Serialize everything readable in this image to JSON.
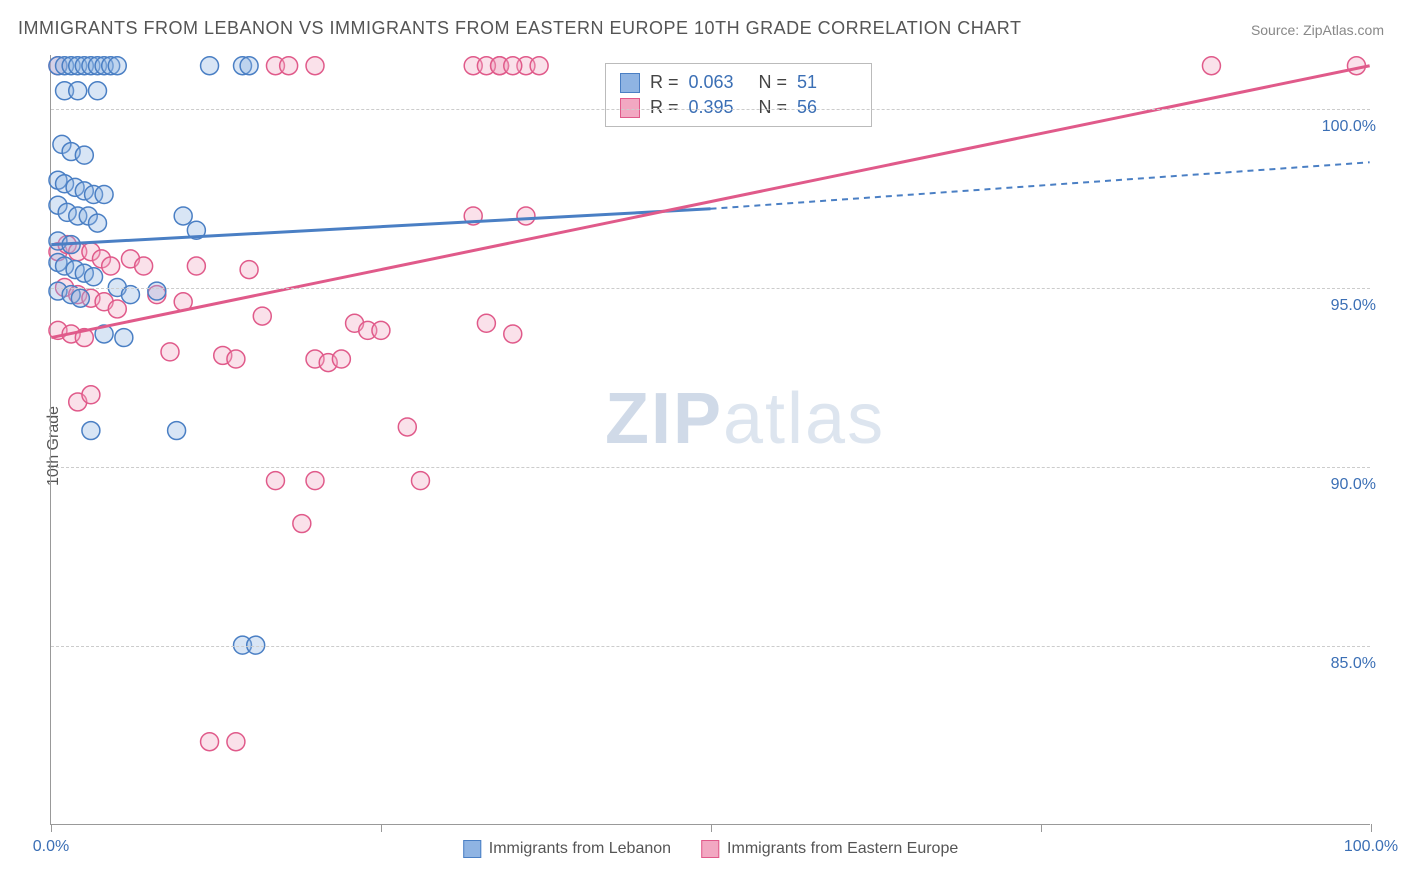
{
  "title": "IMMIGRANTS FROM LEBANON VS IMMIGRANTS FROM EASTERN EUROPE 10TH GRADE CORRELATION CHART",
  "source": "Source: ZipAtlas.com",
  "ylabel": "10th Grade",
  "watermark_a": "ZIP",
  "watermark_b": "atlas",
  "chart": {
    "type": "scatter",
    "xlim": [
      0,
      100
    ],
    "ylim": [
      80,
      101.5
    ],
    "xticks": [
      0,
      25,
      50,
      75,
      100
    ],
    "yticks": [
      85,
      90,
      95,
      100
    ],
    "xtick_labels": {
      "0": "0.0%",
      "100": "100.0%"
    },
    "ytick_labels": {
      "85": "85.0%",
      "90": "90.0%",
      "95": "95.0%",
      "100": "100.0%"
    },
    "grid_color": "#cccccc",
    "axis_color": "#999999",
    "tick_label_color": "#3b6fb5",
    "background_color": "#ffffff",
    "marker_radius": 9,
    "marker_stroke_width": 1.5,
    "marker_fill_opacity": 0.35,
    "trend_line_width": 3,
    "trend_dash": "6,5"
  },
  "series": {
    "lebanon": {
      "label": "Immigrants from Lebanon",
      "color_stroke": "#4a7fc4",
      "color_fill": "#8fb4e3",
      "R": "0.063",
      "N": "51",
      "trend": {
        "x1": 0,
        "y1": 96.2,
        "x2_solid": 50,
        "y2_solid": 97.2,
        "x2": 100,
        "y2": 98.5
      },
      "points": [
        [
          0.5,
          101.2
        ],
        [
          1.0,
          101.2
        ],
        [
          1.5,
          101.2
        ],
        [
          2.0,
          101.2
        ],
        [
          2.5,
          101.2
        ],
        [
          3.0,
          101.2
        ],
        [
          3.5,
          101.2
        ],
        [
          4.0,
          101.2
        ],
        [
          4.5,
          101.2
        ],
        [
          5.0,
          101.2
        ],
        [
          1.0,
          100.5
        ],
        [
          2.0,
          100.5
        ],
        [
          3.5,
          100.5
        ],
        [
          0.8,
          99.0
        ],
        [
          1.5,
          98.8
        ],
        [
          2.5,
          98.7
        ],
        [
          0.5,
          98.0
        ],
        [
          1.0,
          97.9
        ],
        [
          1.8,
          97.8
        ],
        [
          2.5,
          97.7
        ],
        [
          3.2,
          97.6
        ],
        [
          4.0,
          97.6
        ],
        [
          0.5,
          97.3
        ],
        [
          1.2,
          97.1
        ],
        [
          2.0,
          97.0
        ],
        [
          2.8,
          97.0
        ],
        [
          3.5,
          96.8
        ],
        [
          0.5,
          96.3
        ],
        [
          1.5,
          96.2
        ],
        [
          0.5,
          95.7
        ],
        [
          1.0,
          95.6
        ],
        [
          1.8,
          95.5
        ],
        [
          2.5,
          95.4
        ],
        [
          3.2,
          95.3
        ],
        [
          0.5,
          94.9
        ],
        [
          1.5,
          94.8
        ],
        [
          2.2,
          94.7
        ],
        [
          5.0,
          95.0
        ],
        [
          6.0,
          94.8
        ],
        [
          3.0,
          91.0
        ],
        [
          14.5,
          101.2
        ],
        [
          15,
          101.2
        ],
        [
          8.0,
          94.9
        ],
        [
          10,
          97.0
        ],
        [
          11,
          96.6
        ],
        [
          12,
          101.2
        ],
        [
          9.5,
          91.0
        ],
        [
          14.5,
          85.0
        ],
        [
          15.5,
          85.0
        ],
        [
          4.0,
          93.7
        ],
        [
          5.5,
          93.6
        ]
      ]
    },
    "eastern_europe": {
      "label": "Immigrants from Eastern Europe",
      "color_stroke": "#e05a8a",
      "color_fill": "#f2a8c2",
      "R": "0.395",
      "N": "56",
      "trend": {
        "x1": 0,
        "y1": 93.6,
        "x2_solid": 100,
        "y2_solid": 101.2,
        "x2": 100,
        "y2": 101.2
      },
      "points": [
        [
          0.5,
          101.2
        ],
        [
          17,
          101.2
        ],
        [
          18,
          101.2
        ],
        [
          20,
          101.2
        ],
        [
          32,
          101.2
        ],
        [
          34,
          101.2
        ],
        [
          36,
          101.2
        ],
        [
          36,
          97.0
        ],
        [
          88,
          101.2
        ],
        [
          99,
          101.2
        ],
        [
          0.5,
          96.0
        ],
        [
          1.2,
          96.2
        ],
        [
          2.0,
          96.0
        ],
        [
          3.0,
          96.0
        ],
        [
          3.8,
          95.8
        ],
        [
          4.5,
          95.6
        ],
        [
          1.0,
          95.0
        ],
        [
          2.0,
          94.8
        ],
        [
          3.0,
          94.7
        ],
        [
          4.0,
          94.6
        ],
        [
          5.0,
          94.4
        ],
        [
          0.5,
          93.8
        ],
        [
          1.5,
          93.7
        ],
        [
          2.5,
          93.6
        ],
        [
          2.0,
          91.8
        ],
        [
          3.0,
          92.0
        ],
        [
          6.0,
          95.8
        ],
        [
          7.0,
          95.6
        ],
        [
          8.0,
          94.8
        ],
        [
          9.0,
          93.2
        ],
        [
          10,
          94.6
        ],
        [
          11,
          95.6
        ],
        [
          13,
          93.1
        ],
        [
          14,
          93.0
        ],
        [
          15,
          95.5
        ],
        [
          16,
          94.2
        ],
        [
          20,
          93.0
        ],
        [
          21,
          92.9
        ],
        [
          22,
          93.0
        ],
        [
          23,
          94.0
        ],
        [
          24,
          93.8
        ],
        [
          25,
          93.8
        ],
        [
          27,
          91.1
        ],
        [
          28,
          89.6
        ],
        [
          33,
          94.0
        ],
        [
          35,
          93.7
        ],
        [
          17,
          89.6
        ],
        [
          19,
          88.4
        ],
        [
          20,
          89.6
        ],
        [
          12,
          82.3
        ],
        [
          14,
          82.3
        ],
        [
          32,
          97.0
        ],
        [
          33,
          101.2
        ],
        [
          34,
          101.2
        ],
        [
          35,
          101.2
        ],
        [
          37,
          101.2
        ]
      ]
    }
  },
  "stats_box": {
    "rows": [
      {
        "series": "lebanon",
        "r_label": "R =",
        "n_label": "N ="
      },
      {
        "series": "eastern_europe",
        "r_label": "R =",
        "n_label": "N ="
      }
    ]
  }
}
